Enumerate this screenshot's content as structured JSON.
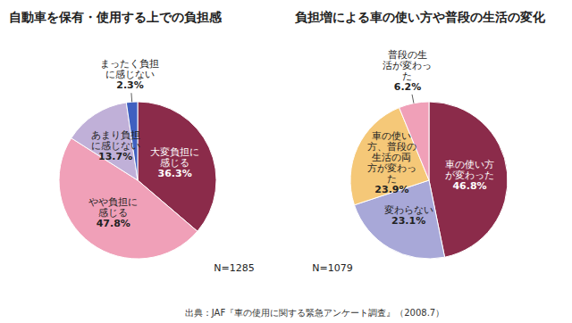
{
  "chart_data": [
    {
      "type": "pie",
      "title": "自動車を保有・使用する上での負担感",
      "categories": [
        "大変負担に\n感じる",
        "やや負担に\n感じる",
        "あまり負担\nに感じない",
        "まったく負担\nに感じない"
      ],
      "values": [
        36.3,
        47.8,
        13.7,
        2.3
      ],
      "value_labels": [
        "36.3%",
        "47.8%",
        "13.7%",
        "2.3%"
      ],
      "data_labels": true,
      "colors": [
        "#8B2B4A",
        "#F0A0B8",
        "#C0B0D8",
        "#4060C0"
      ],
      "annotations": [
        "N=1285"
      ]
    },
    {
      "type": "pie",
      "title": "負担増による車の使い方や普段の生活の変化",
      "categories": [
        "車の使い方\nが変わった",
        "変わらない",
        "車の使い\n方、普段の\n生活の両\n方が変わっ\nた",
        "普段の生\n活が変わっ\nた"
      ],
      "values": [
        46.8,
        23.1,
        23.9,
        6.2
      ],
      "value_labels": [
        "46.8%",
        "23.1%",
        "23.9%",
        "6.2%"
      ],
      "data_labels": true,
      "colors": [
        "#8B2B4A",
        "#A8A8D8",
        "#F5C878",
        "#F0A0B8"
      ],
      "annotations": [
        "N=1079"
      ]
    }
  ],
  "footnote": "出典：JAF『車の使用に関する緊急アンケート調査』（2008.7）"
}
